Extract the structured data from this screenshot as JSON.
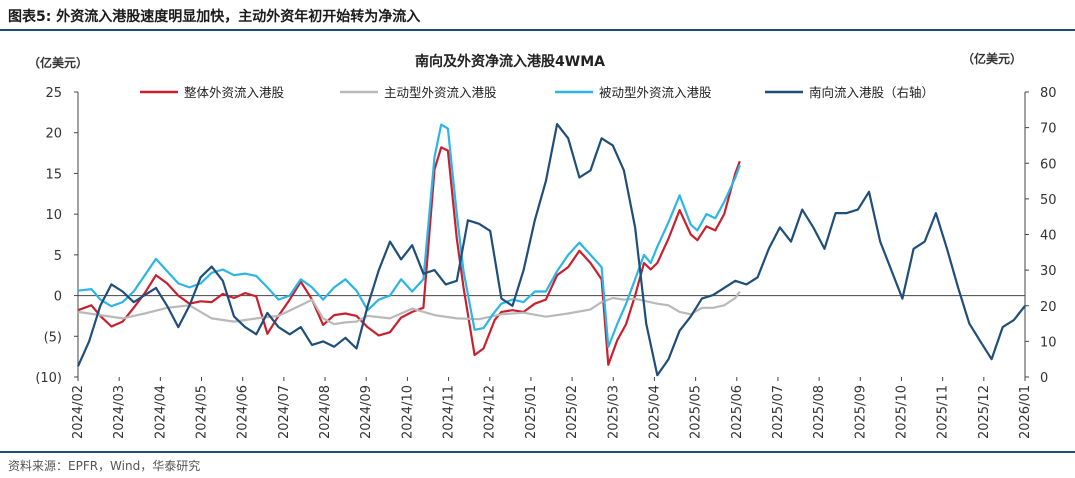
{
  "header": {
    "title": "图表5:  外资流入港股速度明显加快，主动外资年初开始转为净流入"
  },
  "footer": {
    "source": "资料来源：EPFR，Wind，华泰研究"
  },
  "chart_data": {
    "type": "line",
    "title": "南向及外资净流入港股4WMA",
    "left_unit": "（亿美元）",
    "right_unit": "（亿美元）",
    "left_axis": {
      "min": -10,
      "max": 25,
      "ticks": [
        "(10)",
        "(5)",
        "0",
        "5",
        "10",
        "15",
        "20",
        "25"
      ]
    },
    "right_axis": {
      "min": 0,
      "max": 80,
      "ticks": [
        "0",
        "10",
        "20",
        "30",
        "40",
        "50",
        "60",
        "70",
        "80"
      ]
    },
    "x_labels": [
      "2024/02",
      "2024/03",
      "2024/04",
      "2024/05",
      "2024/06",
      "2024/07",
      "2024/08",
      "2024/09",
      "2024/10",
      "2024/11",
      "2024/12",
      "2025/01",
      "2025/02",
      "2025/03",
      "2025/04",
      "2025/05",
      "2025/06",
      "2025/07",
      "2025/08",
      "2025/09",
      "2025/10",
      "2025/11",
      "2025/12",
      "2026/01"
    ],
    "legend_position": "top",
    "grid": false,
    "series": [
      {
        "name": "整体外资流入港股",
        "axis": "left",
        "color": "#c8202f",
        "points": [
          [
            0,
            -1.8
          ],
          [
            0.6,
            -1.2
          ],
          [
            1,
            -2.5
          ],
          [
            1.5,
            -3.8
          ],
          [
            2,
            -3.2
          ],
          [
            2.5,
            -1.5
          ],
          [
            3,
            0.3
          ],
          [
            3.5,
            2.5
          ],
          [
            4,
            1.5
          ],
          [
            4.5,
            0
          ],
          [
            5,
            -1
          ],
          [
            5.5,
            -0.7
          ],
          [
            6,
            -0.8
          ],
          [
            6.5,
            0.2
          ],
          [
            7,
            -0.3
          ],
          [
            7.5,
            0.3
          ],
          [
            8,
            -0.1
          ],
          [
            8.5,
            -4.7
          ],
          [
            9,
            -2.5
          ],
          [
            9.5,
            -0.5
          ],
          [
            10,
            1.7
          ],
          [
            10.5,
            -0.5
          ],
          [
            11,
            -3.6
          ],
          [
            11.5,
            -2.4
          ],
          [
            12,
            -2.2
          ],
          [
            12.5,
            -2.5
          ],
          [
            13,
            -3.9
          ],
          [
            13.5,
            -4.9
          ],
          [
            14,
            -4.5
          ],
          [
            14.5,
            -2.7
          ],
          [
            15,
            -2
          ],
          [
            15.5,
            -1.5
          ],
          [
            16,
            15.5
          ],
          [
            16.3,
            18.2
          ],
          [
            16.6,
            17.8
          ],
          [
            17,
            7
          ],
          [
            17.3,
            1
          ],
          [
            17.8,
            -7.3
          ],
          [
            18.2,
            -6.5
          ],
          [
            18.7,
            -3
          ],
          [
            19,
            -2
          ],
          [
            19.5,
            -1.8
          ],
          [
            20,
            -2
          ],
          [
            20.5,
            -1
          ],
          [
            21,
            -0.5
          ],
          [
            21.5,
            2.5
          ],
          [
            22,
            3.5
          ],
          [
            22.5,
            5.5
          ],
          [
            23,
            4
          ],
          [
            23.5,
            2
          ],
          [
            23.8,
            -8.5
          ],
          [
            24.2,
            -5.5
          ],
          [
            24.6,
            -3.5
          ],
          [
            25,
            0
          ],
          [
            25.4,
            4
          ],
          [
            25.7,
            3.2
          ],
          [
            26,
            4
          ],
          [
            26.5,
            7
          ],
          [
            27,
            10.5
          ],
          [
            27.5,
            7.5
          ],
          [
            27.8,
            6.8
          ],
          [
            28.2,
            8.5
          ],
          [
            28.6,
            8
          ],
          [
            29,
            10
          ],
          [
            29.5,
            15
          ],
          [
            29.7,
            16.5
          ]
        ]
      },
      {
        "name": "主动型外资流入港股",
        "axis": "left",
        "color": "#b9b9b9",
        "points": [
          [
            0,
            -2
          ],
          [
            1,
            -2.4
          ],
          [
            2,
            -2.8
          ],
          [
            3,
            -2.2
          ],
          [
            4,
            -1.5
          ],
          [
            5,
            -1.2
          ],
          [
            6,
            -2.8
          ],
          [
            7,
            -3.2
          ],
          [
            8,
            -2.8
          ],
          [
            9,
            -2.5
          ],
          [
            10,
            -1.2
          ],
          [
            10.5,
            -0.5
          ],
          [
            11,
            -2.8
          ],
          [
            11.5,
            -3.5
          ],
          [
            12,
            -3.3
          ],
          [
            12.5,
            -3.2
          ],
          [
            13,
            -2.5
          ],
          [
            14,
            -2.8
          ],
          [
            15,
            -1.6
          ],
          [
            16,
            -2.4
          ],
          [
            17,
            -2.8
          ],
          [
            18,
            -2.9
          ],
          [
            19,
            -2.3
          ],
          [
            20,
            -2.1
          ],
          [
            21,
            -2.6
          ],
          [
            22,
            -2.2
          ],
          [
            23,
            -1.7
          ],
          [
            23.5,
            -0.8
          ],
          [
            24,
            -0.3
          ],
          [
            24.5,
            -0.5
          ],
          [
            25,
            -0.4
          ],
          [
            26,
            -1
          ],
          [
            26.5,
            -1.2
          ],
          [
            27,
            -2
          ],
          [
            27.5,
            -2.3
          ],
          [
            28,
            -1.5
          ],
          [
            28.5,
            -1.5
          ],
          [
            29,
            -1.2
          ],
          [
            29.5,
            -0.3
          ],
          [
            29.7,
            0.5
          ]
        ]
      },
      {
        "name": "被动型外资流入港股",
        "axis": "left",
        "color": "#2db5e6",
        "points": [
          [
            0,
            0.6
          ],
          [
            0.6,
            0.8
          ],
          [
            1,
            -0.5
          ],
          [
            1.5,
            -1.3
          ],
          [
            2,
            -0.8
          ],
          [
            2.5,
            0.5
          ],
          [
            3,
            2.5
          ],
          [
            3.5,
            4.5
          ],
          [
            4,
            3
          ],
          [
            4.5,
            1.5
          ],
          [
            5,
            1
          ],
          [
            5.5,
            1.5
          ],
          [
            6,
            2.8
          ],
          [
            6.5,
            3.2
          ],
          [
            7,
            2.5
          ],
          [
            7.5,
            2.7
          ],
          [
            8,
            2.4
          ],
          [
            8.5,
            1
          ],
          [
            9,
            -0.5
          ],
          [
            9.5,
            0
          ],
          [
            10,
            2
          ],
          [
            10.5,
            1
          ],
          [
            11,
            -0.5
          ],
          [
            11.5,
            1
          ],
          [
            12,
            2
          ],
          [
            12.5,
            0.6
          ],
          [
            13,
            -1.8
          ],
          [
            13.5,
            -0.5
          ],
          [
            14,
            0
          ],
          [
            14.5,
            2
          ],
          [
            15,
            0.5
          ],
          [
            15.5,
            2
          ],
          [
            16,
            17
          ],
          [
            16.3,
            21
          ],
          [
            16.6,
            20.5
          ],
          [
            17,
            10
          ],
          [
            17.3,
            3
          ],
          [
            17.8,
            -4.2
          ],
          [
            18.2,
            -4.0
          ],
          [
            18.7,
            -2
          ],
          [
            19,
            -1
          ],
          [
            19.5,
            -0.5
          ],
          [
            20,
            -0.8
          ],
          [
            20.5,
            0.5
          ],
          [
            21,
            0.5
          ],
          [
            21.5,
            3
          ],
          [
            22,
            5
          ],
          [
            22.5,
            6.5
          ],
          [
            23,
            5
          ],
          [
            23.5,
            3.5
          ],
          [
            23.8,
            -6.3
          ],
          [
            24.2,
            -3.5
          ],
          [
            24.6,
            -1
          ],
          [
            25,
            2
          ],
          [
            25.4,
            5
          ],
          [
            25.7,
            4
          ],
          [
            26,
            6
          ],
          [
            26.5,
            9
          ],
          [
            27,
            12.3
          ],
          [
            27.5,
            8.7
          ],
          [
            27.8,
            8
          ],
          [
            28.2,
            10
          ],
          [
            28.6,
            9.5
          ],
          [
            29,
            11.5
          ],
          [
            29.5,
            14.5
          ],
          [
            29.7,
            16
          ]
        ]
      },
      {
        "name": "南向流入港股（右轴）",
        "axis": "right",
        "color": "#1f4e79",
        "points": [
          [
            0,
            3
          ],
          [
            0.5,
            10
          ],
          [
            1,
            20
          ],
          [
            1.5,
            26
          ],
          [
            2,
            24
          ],
          [
            2.5,
            21
          ],
          [
            3,
            23
          ],
          [
            3.5,
            25
          ],
          [
            4,
            20
          ],
          [
            4.5,
            14
          ],
          [
            5,
            20
          ],
          [
            5.5,
            28
          ],
          [
            6,
            31
          ],
          [
            6.5,
            27
          ],
          [
            7,
            17
          ],
          [
            7.5,
            14
          ],
          [
            8,
            12
          ],
          [
            8.5,
            18
          ],
          [
            9,
            14
          ],
          [
            9.5,
            12
          ],
          [
            10,
            14
          ],
          [
            10.5,
            9
          ],
          [
            11,
            10
          ],
          [
            11.5,
            8.5
          ],
          [
            12,
            11
          ],
          [
            12.5,
            8
          ],
          [
            13,
            20
          ],
          [
            13.5,
            30
          ],
          [
            14,
            38
          ],
          [
            14.5,
            33
          ],
          [
            15,
            37
          ],
          [
            15.5,
            29
          ],
          [
            16,
            30
          ],
          [
            16.5,
            26
          ],
          [
            17,
            27
          ],
          [
            17.5,
            44
          ],
          [
            18,
            43
          ],
          [
            18.5,
            41
          ],
          [
            19,
            22
          ],
          [
            19.5,
            20
          ],
          [
            20,
            30
          ],
          [
            20.5,
            44
          ],
          [
            21,
            55
          ],
          [
            21.5,
            71
          ],
          [
            22,
            67
          ],
          [
            22.5,
            56
          ],
          [
            23,
            58
          ],
          [
            23.5,
            67
          ],
          [
            24,
            65
          ],
          [
            24.5,
            58
          ],
          [
            25,
            42
          ],
          [
            25.5,
            15
          ],
          [
            26,
            0.5
          ],
          [
            26.5,
            5
          ],
          [
            27,
            13
          ],
          [
            27.5,
            17
          ],
          [
            28,
            22
          ],
          [
            28.5,
            23
          ],
          [
            29,
            25
          ],
          [
            29.5,
            27
          ],
          [
            30,
            26
          ],
          [
            30.5,
            28
          ],
          [
            31,
            36
          ],
          [
            31.5,
            42
          ],
          [
            32,
            38
          ],
          [
            32.5,
            47
          ],
          [
            33,
            42
          ],
          [
            33.5,
            36
          ],
          [
            34,
            46
          ],
          [
            34.5,
            46
          ],
          [
            35,
            47
          ],
          [
            35.5,
            52
          ],
          [
            36,
            38
          ],
          [
            36.5,
            30
          ],
          [
            37,
            22
          ],
          [
            37.5,
            36
          ],
          [
            38,
            38
          ],
          [
            38.5,
            46
          ],
          [
            39,
            36
          ],
          [
            39.5,
            25
          ],
          [
            40,
            15
          ],
          [
            40.5,
            10
          ],
          [
            41,
            5
          ],
          [
            41.5,
            14
          ],
          [
            42,
            16
          ],
          [
            42.5,
            20
          ]
        ]
      }
    ]
  }
}
